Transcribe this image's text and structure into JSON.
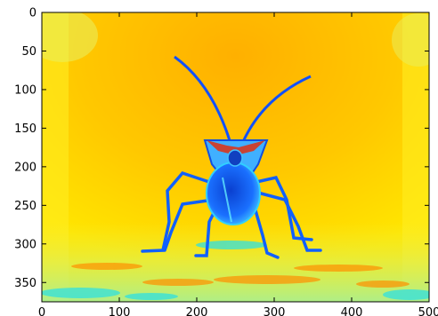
{
  "chart_data": {
    "type": "heatmap",
    "title": "",
    "xlabel": "",
    "ylabel": "",
    "colormap": "jet",
    "image_extent": {
      "x": [
        0,
        500
      ],
      "y": [
        0,
        375
      ]
    },
    "xlim": [
      0,
      500
    ],
    "ylim": [
      375,
      0
    ],
    "y_axis_inverted": true,
    "grid": false,
    "x_ticks": [
      {
        "value": 0,
        "label": "0"
      },
      {
        "value": 100,
        "label": "100"
      },
      {
        "value": 200,
        "label": "200"
      },
      {
        "value": 300,
        "label": "300"
      },
      {
        "value": 400,
        "label": "400"
      },
      {
        "value": 500,
        "label": "500"
      }
    ],
    "y_ticks": [
      {
        "value": 0,
        "label": "0"
      },
      {
        "value": 50,
        "label": "50"
      },
      {
        "value": 100,
        "label": "100"
      },
      {
        "value": 150,
        "label": "150"
      },
      {
        "value": 200,
        "label": "200"
      },
      {
        "value": 250,
        "label": "250"
      },
      {
        "value": 300,
        "label": "300"
      },
      {
        "value": 350,
        "label": "350"
      }
    ],
    "image_content": "jet-colormapped photograph of an insect facing the camera with two long antennae",
    "colors": {
      "background_yellow": "#ffe000",
      "background_orange": "#ffb400",
      "insect_blue": "#1060ff",
      "highlight_cyan": "#30e0e0",
      "accent_red": "#e02000"
    }
  }
}
